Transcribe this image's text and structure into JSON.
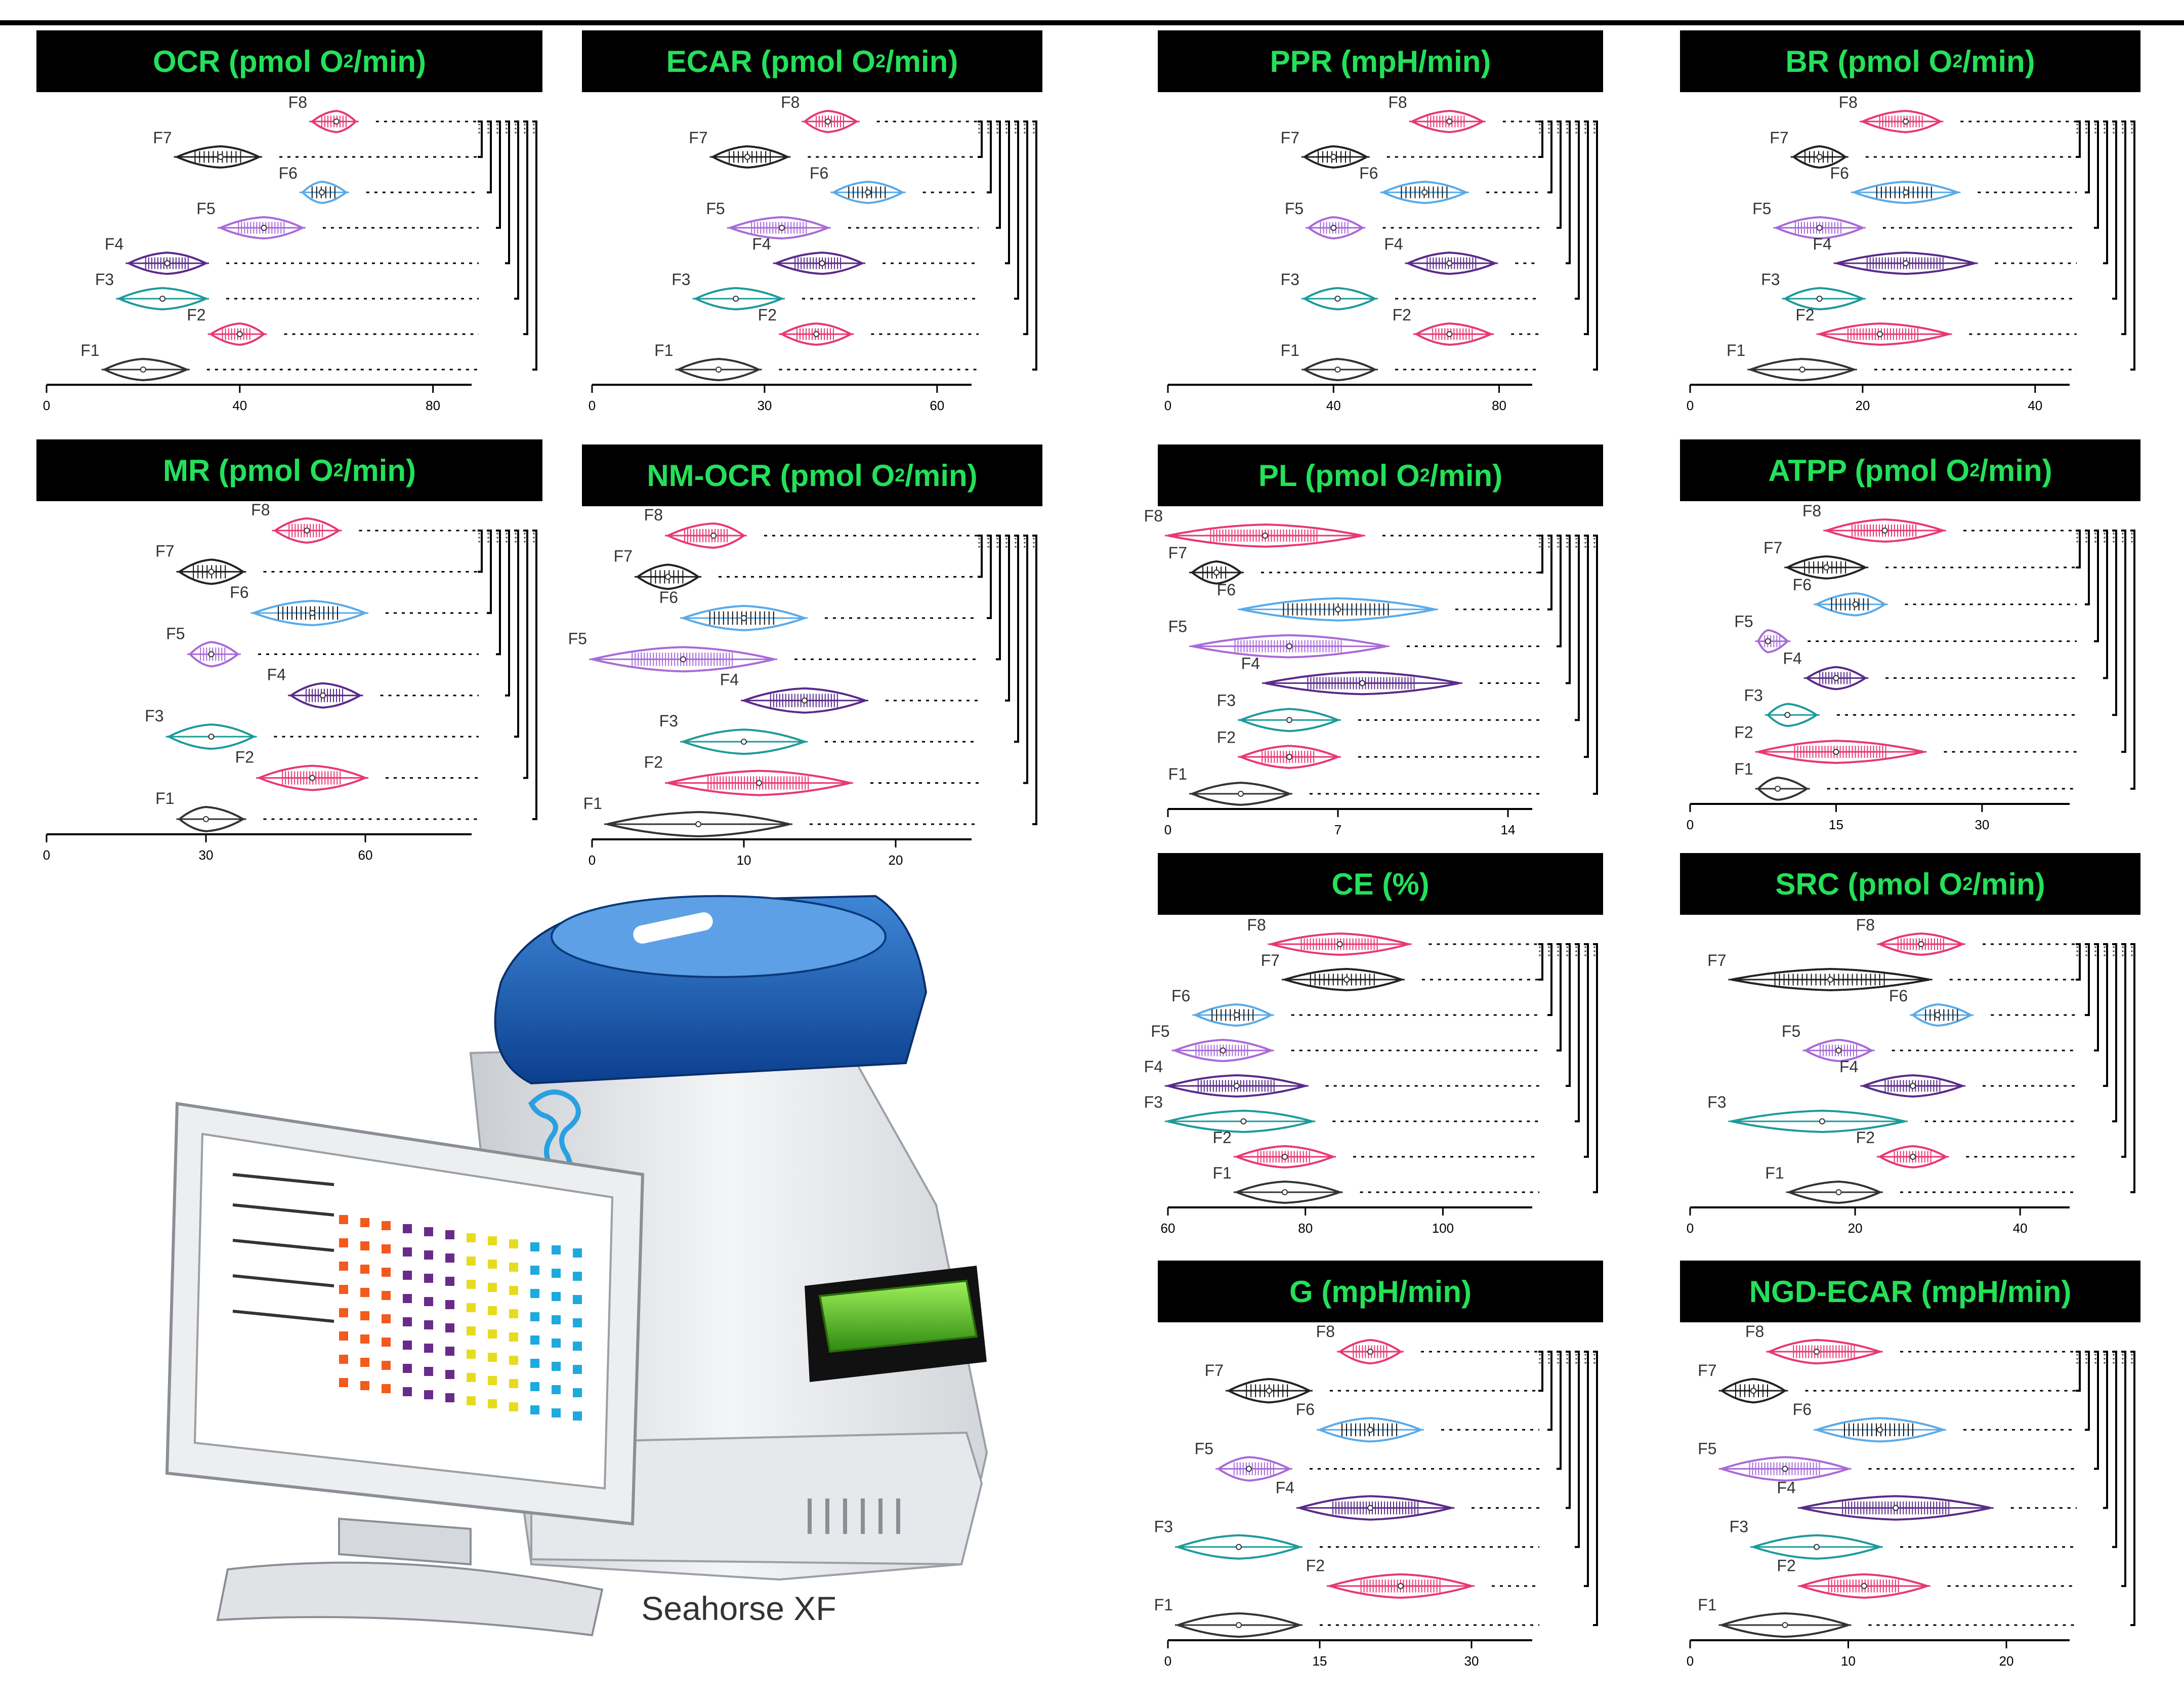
{
  "figure": {
    "panels": [
      {
        "id": "ocr",
        "title": "OCR (pmol O",
        "subscript": "2",
        "title_end": "/min)",
        "title_w": 1000
      },
      {
        "id": "ecar",
        "title": "ECAR (pmol O",
        "subscript": "2",
        "title_end": "/min)",
        "title_w": 910
      },
      {
        "id": "ppr",
        "title": "PPR (mpH/min)",
        "subscript": "",
        "title_end": "",
        "title_w": 880
      },
      {
        "id": "br",
        "title": "BR (pmol O",
        "subscript": "2",
        "title_end": "/min)",
        "title_w": 910
      },
      {
        "id": "mr",
        "title": "MR (pmol O",
        "subscript": "2",
        "title_end": "/min)",
        "title_w": 1000
      },
      {
        "id": "nmocr",
        "title": "NM-OCR (pmol O",
        "subscript": "2",
        "title_end": "/min)",
        "title_w": 910
      },
      {
        "id": "pl",
        "title": "PL (pmol O",
        "subscript": "2",
        "title_end": "/min)",
        "title_w": 880
      },
      {
        "id": "atpp",
        "title": "ATPP (pmol O",
        "subscript": "2",
        "title_end": "/min)",
        "title_w": 910
      },
      {
        "id": "ce",
        "title": "CE (%)",
        "subscript": "",
        "title_end": "",
        "title_w": 880
      },
      {
        "id": "src",
        "title": "SRC (pmol O",
        "subscript": "2",
        "title_end": "/min)",
        "title_w": 910
      },
      {
        "id": "g",
        "title": "G (mpH/min)",
        "subscript": "",
        "title_end": "",
        "title_w": 880
      },
      {
        "id": "ngdecar",
        "title": "NGD-ECAR (mpH/min)",
        "subscript": "",
        "title_end": "",
        "title_w": 910
      }
    ],
    "device_label": "Seahorse XF"
  },
  "colors": {
    "F1": "#333333",
    "F2": "#e83872",
    "F3": "#1e9a9a",
    "F4": "#5a2a8a",
    "F5": "#a86ad8",
    "F6": "#5aaae8",
    "F7": "#222222",
    "F8": "#e83872",
    "title_bg": "#000000",
    "title_text": "#24e05a"
  },
  "chart_data": [
    {
      "id": "ocr",
      "type": "violin",
      "title": "OCR (pmol O2/min)",
      "xticks": [
        0,
        40,
        80
      ],
      "xlim": [
        0,
        88
      ],
      "groups": [
        {
          "label": "F8",
          "min": 55,
          "max": 64,
          "median": 60
        },
        {
          "label": "F7",
          "min": 27,
          "max": 44,
          "median": 36
        },
        {
          "label": "F6",
          "min": 53,
          "max": 62,
          "median": 57
        },
        {
          "label": "F5",
          "min": 36,
          "max": 53,
          "median": 45
        },
        {
          "label": "F4",
          "min": 17,
          "max": 33,
          "median": 25
        },
        {
          "label": "F3",
          "min": 15,
          "max": 33,
          "median": 24
        },
        {
          "label": "F2",
          "min": 34,
          "max": 45,
          "median": 40
        },
        {
          "label": "F1",
          "min": 12,
          "max": 29,
          "median": 20
        }
      ]
    },
    {
      "id": "ecar",
      "type": "violin",
      "title": "ECAR (pmol O2/min)",
      "xticks": [
        0,
        30,
        60
      ],
      "xlim": [
        0,
        66
      ],
      "groups": [
        {
          "label": "F8",
          "min": 37,
          "max": 46,
          "median": 41
        },
        {
          "label": "F7",
          "min": 21,
          "max": 34,
          "median": 27
        },
        {
          "label": "F6",
          "min": 42,
          "max": 54,
          "median": 48
        },
        {
          "label": "F5",
          "min": 24,
          "max": 41,
          "median": 33
        },
        {
          "label": "F4",
          "min": 32,
          "max": 47,
          "median": 40
        },
        {
          "label": "F3",
          "min": 18,
          "max": 33,
          "median": 25
        },
        {
          "label": "F2",
          "min": 33,
          "max": 45,
          "median": 39
        },
        {
          "label": "F1",
          "min": 15,
          "max": 29,
          "median": 22
        }
      ]
    },
    {
      "id": "ppr",
      "type": "violin",
      "title": "PPR (mpH/min)",
      "xticks": [
        0,
        40,
        80
      ],
      "xlim": [
        0,
        88
      ],
      "groups": [
        {
          "label": "F8",
          "min": 59,
          "max": 76,
          "median": 68
        },
        {
          "label": "F7",
          "min": 33,
          "max": 48,
          "median": 40
        },
        {
          "label": "F6",
          "min": 52,
          "max": 72,
          "median": 62
        },
        {
          "label": "F5",
          "min": 34,
          "max": 47,
          "median": 40
        },
        {
          "label": "F4",
          "min": 58,
          "max": 79,
          "median": 68
        },
        {
          "label": "F3",
          "min": 33,
          "max": 50,
          "median": 41
        },
        {
          "label": "F2",
          "min": 60,
          "max": 78,
          "median": 68
        },
        {
          "label": "F1",
          "min": 33,
          "max": 50,
          "median": 41
        }
      ]
    },
    {
      "id": "br",
      "type": "violin",
      "title": "BR (pmol O2/min)",
      "xticks": [
        0,
        20,
        40
      ],
      "xlim": [
        0,
        44
      ],
      "groups": [
        {
          "label": "F8",
          "min": 20,
          "max": 29,
          "median": 25
        },
        {
          "label": "F7",
          "min": 12,
          "max": 18,
          "median": 15
        },
        {
          "label": "F6",
          "min": 19,
          "max": 31,
          "median": 25
        },
        {
          "label": "F5",
          "min": 10,
          "max": 20,
          "median": 15
        },
        {
          "label": "F4",
          "min": 17,
          "max": 33,
          "median": 25
        },
        {
          "label": "F3",
          "min": 11,
          "max": 20,
          "median": 15
        },
        {
          "label": "F2",
          "min": 15,
          "max": 30,
          "median": 22
        },
        {
          "label": "F1",
          "min": 7,
          "max": 19,
          "median": 13
        }
      ]
    },
    {
      "id": "mr",
      "type": "violin",
      "title": "MR (pmol O2/min)",
      "xticks": [
        0,
        30,
        60
      ],
      "xlim": [
        0,
        80
      ],
      "groups": [
        {
          "label": "F8",
          "min": 43,
          "max": 55,
          "median": 49
        },
        {
          "label": "F7",
          "min": 25,
          "max": 37,
          "median": 31
        },
        {
          "label": "F6",
          "min": 39,
          "max": 60,
          "median": 50
        },
        {
          "label": "F5",
          "min": 27,
          "max": 36,
          "median": 31
        },
        {
          "label": "F4",
          "min": 46,
          "max": 59,
          "median": 52
        },
        {
          "label": "F3",
          "min": 23,
          "max": 39,
          "median": 31
        },
        {
          "label": "F2",
          "min": 40,
          "max": 60,
          "median": 50
        },
        {
          "label": "F1",
          "min": 25,
          "max": 37,
          "median": 30
        }
      ]
    },
    {
      "id": "nmocr",
      "type": "violin",
      "title": "NM-OCR (pmol O2/min)",
      "xticks": [
        0,
        10,
        20
      ],
      "xlim": [
        0,
        25
      ],
      "groups": [
        {
          "label": "F8",
          "min": 5,
          "max": 10,
          "median": 8
        },
        {
          "label": "F7",
          "min": 3,
          "max": 7,
          "median": 5
        },
        {
          "label": "F6",
          "min": 6,
          "max": 14,
          "median": 10
        },
        {
          "label": "F5",
          "min": 0,
          "max": 12,
          "median": 6
        },
        {
          "label": "F4",
          "min": 10,
          "max": 18,
          "median": 14
        },
        {
          "label": "F3",
          "min": 6,
          "max": 14,
          "median": 10
        },
        {
          "label": "F2",
          "min": 5,
          "max": 17,
          "median": 11
        },
        {
          "label": "F1",
          "min": 1,
          "max": 13,
          "median": 7
        }
      ]
    },
    {
      "id": "pl",
      "type": "violin",
      "title": "PL (pmol O2/min)",
      "xticks": [
        0,
        7,
        14
      ],
      "xlim": [
        0,
        15
      ],
      "groups": [
        {
          "label": "F8",
          "min": 0,
          "max": 8,
          "median": 4
        },
        {
          "label": "F7",
          "min": 1,
          "max": 3,
          "median": 2
        },
        {
          "label": "F6",
          "min": 3,
          "max": 11,
          "median": 7
        },
        {
          "label": "F5",
          "min": 1,
          "max": 9,
          "median": 5
        },
        {
          "label": "F4",
          "min": 4,
          "max": 12,
          "median": 8
        },
        {
          "label": "F3",
          "min": 3,
          "max": 7,
          "median": 5
        },
        {
          "label": "F2",
          "min": 3,
          "max": 7,
          "median": 5
        },
        {
          "label": "F1",
          "min": 1,
          "max": 5,
          "median": 3
        }
      ]
    },
    {
      "id": "atpp",
      "type": "violin",
      "title": "ATPP (pmol O2/min)",
      "xticks": [
        0,
        15,
        30
      ],
      "xlim": [
        0,
        39
      ],
      "groups": [
        {
          "label": "F8",
          "min": 14,
          "max": 26,
          "median": 20
        },
        {
          "label": "F7",
          "min": 10,
          "max": 18,
          "median": 14
        },
        {
          "label": "F6",
          "min": 13,
          "max": 20,
          "median": 17
        },
        {
          "label": "F5",
          "min": 7,
          "max": 10,
          "median": 8
        },
        {
          "label": "F4",
          "min": 12,
          "max": 18,
          "median": 15
        },
        {
          "label": "F3",
          "min": 8,
          "max": 13,
          "median": 10
        },
        {
          "label": "F2",
          "min": 7,
          "max": 24,
          "median": 15
        },
        {
          "label": "F1",
          "min": 7,
          "max": 12,
          "median": 9
        }
      ]
    },
    {
      "id": "ce",
      "type": "violin",
      "title": "CE (%)",
      "xticks": [
        60,
        80,
        100
      ],
      "xlim": [
        60,
        113
      ],
      "groups": [
        {
          "label": "F8",
          "min": 75,
          "max": 95,
          "median": 85
        },
        {
          "label": "F7",
          "min": 77,
          "max": 94,
          "median": 86
        },
        {
          "label": "F6",
          "min": 64,
          "max": 75,
          "median": 70
        },
        {
          "label": "F5",
          "min": 61,
          "max": 75,
          "median": 68
        },
        {
          "label": "F4",
          "min": 60,
          "max": 80,
          "median": 70
        },
        {
          "label": "F3",
          "min": 60,
          "max": 81,
          "median": 71
        },
        {
          "label": "F2",
          "min": 70,
          "max": 84,
          "median": 77
        },
        {
          "label": "F1",
          "min": 70,
          "max": 85,
          "median": 77
        }
      ]
    },
    {
      "id": "src",
      "type": "violin",
      "title": "SRC (pmol O2/min)",
      "xticks": [
        0,
        20,
        40
      ],
      "xlim": [
        0,
        46
      ],
      "groups": [
        {
          "label": "F8",
          "min": 23,
          "max": 33,
          "median": 28
        },
        {
          "label": "F7",
          "min": 5,
          "max": 29,
          "median": 17
        },
        {
          "label": "F6",
          "min": 27,
          "max": 34,
          "median": 30
        },
        {
          "label": "F5",
          "min": 14,
          "max": 22,
          "median": 18
        },
        {
          "label": "F4",
          "min": 21,
          "max": 33,
          "median": 27
        },
        {
          "label": "F3",
          "min": 5,
          "max": 26,
          "median": 16
        },
        {
          "label": "F2",
          "min": 23,
          "max": 31,
          "median": 27
        },
        {
          "label": "F1",
          "min": 12,
          "max": 23,
          "median": 18
        }
      ]
    },
    {
      "id": "g",
      "type": "violin",
      "title": "G (mpH/min)",
      "xticks": [
        0,
        15,
        30
      ],
      "xlim": [
        0,
        36
      ],
      "groups": [
        {
          "label": "F8",
          "min": 17,
          "max": 23,
          "median": 20
        },
        {
          "label": "F7",
          "min": 6,
          "max": 14,
          "median": 10
        },
        {
          "label": "F6",
          "min": 15,
          "max": 25,
          "median": 20
        },
        {
          "label": "F5",
          "min": 5,
          "max": 12,
          "median": 8
        },
        {
          "label": "F4",
          "min": 13,
          "max": 28,
          "median": 20
        },
        {
          "label": "F3",
          "min": 1,
          "max": 13,
          "median": 7
        },
        {
          "label": "F2",
          "min": 16,
          "max": 30,
          "median": 23
        },
        {
          "label": "F1",
          "min": 1,
          "max": 13,
          "median": 7
        }
      ]
    },
    {
      "id": "ngdecar",
      "type": "violin",
      "title": "NGD-ECAR (mpH/min)",
      "xticks": [
        0,
        10,
        20
      ],
      "xlim": [
        0,
        24
      ],
      "groups": [
        {
          "label": "F8",
          "min": 5,
          "max": 12,
          "median": 8
        },
        {
          "label": "F7",
          "min": 2,
          "max": 6,
          "median": 4
        },
        {
          "label": "F6",
          "min": 8,
          "max": 16,
          "median": 12
        },
        {
          "label": "F5",
          "min": 2,
          "max": 10,
          "median": 6
        },
        {
          "label": "F4",
          "min": 7,
          "max": 19,
          "median": 13
        },
        {
          "label": "F3",
          "min": 4,
          "max": 12,
          "median": 8
        },
        {
          "label": "F2",
          "min": 7,
          "max": 15,
          "median": 11
        },
        {
          "label": "F1",
          "min": 2,
          "max": 10,
          "median": 6
        }
      ]
    }
  ]
}
